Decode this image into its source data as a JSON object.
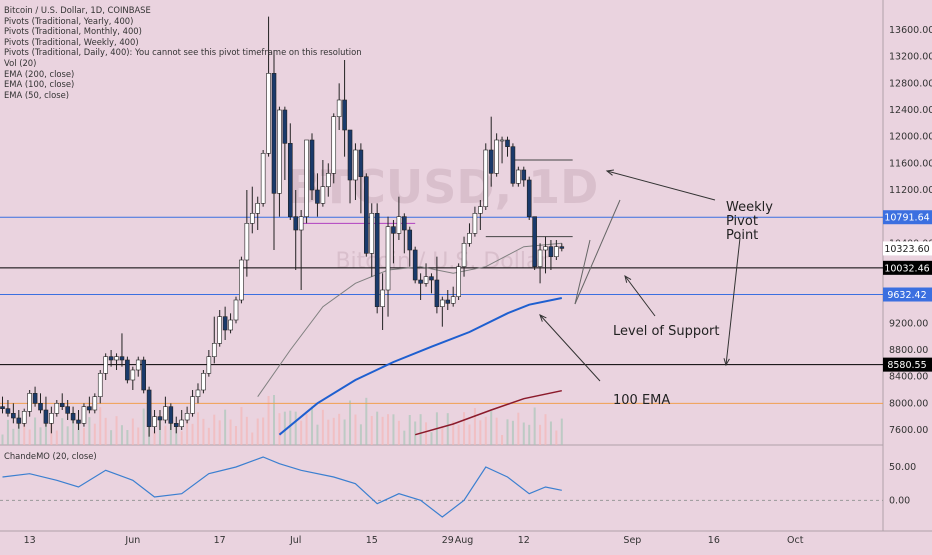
{
  "legend": {
    "symbol": "Bitcoin / U.S. Dollar, 1D, COINBASE",
    "studies": [
      "Pivots (Traditional, Yearly, 400)",
      "Pivots (Traditional, Monthly, 400)",
      "Pivots (Traditional, Weekly, 400)",
      "Pivots (Traditional, Daily, 400): You cannot see this pivot timeframe on this resolution",
      "Vol (20)",
      "EMA (200, close)",
      "EMA (100, close)",
      "EMA (50, close)"
    ]
  },
  "watermark": {
    "ticker": "BTCUSD, 1D",
    "name": "Bitcoin / U.S. Dollar"
  },
  "oscillator": {
    "label": "ChandeMO (20, close)"
  },
  "annotations": [
    {
      "text": "Weekly\nPivot\nPoint"
    },
    {
      "text": "Level of Support"
    },
    {
      "text": "100 EMA"
    }
  ],
  "colors": {
    "background": "#ead3df",
    "bull_candle": "#ffffff",
    "bear_candle": "#1a3a6b",
    "ema_100": "#1e5fd0",
    "ema_200": "#8b1a2b",
    "ema_50": "#808080",
    "weekly_pivot_line": "#3b6fe0",
    "support_line": "#000000",
    "orange_line": "#f0a050",
    "oscillator": "#3b7fd0"
  },
  "chart_data": {
    "type": "candlestick",
    "title": "Bitcoin / U.S. Dollar, 1D, COINBASE",
    "y_axis": {
      "min": 7450,
      "max": 13900,
      "ticks": [
        7600,
        8000,
        8400,
        8800,
        9200,
        9600,
        10000,
        10400,
        10800,
        11200,
        11600,
        12000,
        12400,
        12800,
        13200,
        13600
      ],
      "tick_labels": [
        "7600.00",
        "8000.00",
        "8400.00",
        "8800.00",
        "9200.00",
        "9600.00",
        "10000.00",
        "10400.00",
        "10800.00",
        "11200.00",
        "11600.00",
        "12000.00",
        "12400.00",
        "12800.00",
        "13200.00",
        "13600.00"
      ]
    },
    "x_axis": {
      "start_date": "2019-05-08",
      "end_date": "2019-10-10",
      "tick_labels": [
        {
          "label": "13",
          "date": "2019-05-13"
        },
        {
          "label": "Jun",
          "date": "2019-06-01"
        },
        {
          "label": "17",
          "date": "2019-06-17"
        },
        {
          "label": "Jul",
          "date": "2019-07-01"
        },
        {
          "label": "15",
          "date": "2019-07-15"
        },
        {
          "label": "29",
          "date": "2019-07-29"
        },
        {
          "label": "Aug",
          "date": "2019-08-01"
        },
        {
          "label": "12",
          "date": "2019-08-12"
        },
        {
          "label": "Sep",
          "date": "2019-09-01"
        },
        {
          "label": "16",
          "date": "2019-09-16"
        },
        {
          "label": "Oct",
          "date": "2019-10-01"
        }
      ]
    },
    "price_tags": [
      {
        "value": 10791.64,
        "label": "10791.64",
        "color": "#3b6fe0"
      },
      {
        "value": 10323.6,
        "label": "10323.60",
        "color": "#ffffff"
      },
      {
        "value": 10032.46,
        "label": "10032.46",
        "color": "#000000"
      },
      {
        "value": 9632.42,
        "label": "9632.42",
        "color": "#3b6fe0"
      },
      {
        "value": 8580.55,
        "label": "8580.55",
        "color": "#000000"
      }
    ],
    "horizontal_lines": [
      {
        "value": 10791.64,
        "color": "#3b6fe0"
      },
      {
        "value": 10032.46,
        "color": "#000000"
      },
      {
        "value": 9632.42,
        "color": "#3b6fe0"
      },
      {
        "value": 8580.55,
        "color": "#000000"
      },
      {
        "value": 8000,
        "color": "#f0a050"
      }
    ],
    "candles": [
      {
        "date": "2019-05-08",
        "o": 7950,
        "h": 8100,
        "l": 7850,
        "c": 7920
      },
      {
        "date": "2019-05-09",
        "o": 7920,
        "h": 8050,
        "l": 7800,
        "c": 7850
      },
      {
        "date": "2019-05-10",
        "o": 7850,
        "h": 8000,
        "l": 7700,
        "c": 7780
      },
      {
        "date": "2019-05-11",
        "o": 7780,
        "h": 7900,
        "l": 7620,
        "c": 7700
      },
      {
        "date": "2019-05-12",
        "o": 7700,
        "h": 7920,
        "l": 7650,
        "c": 7880
      },
      {
        "date": "2019-05-13",
        "o": 7880,
        "h": 8200,
        "l": 7800,
        "c": 8150
      },
      {
        "date": "2019-05-14",
        "o": 8150,
        "h": 8250,
        "l": 7950,
        "c": 8000
      },
      {
        "date": "2019-05-15",
        "o": 8000,
        "h": 8150,
        "l": 7850,
        "c": 7900
      },
      {
        "date": "2019-05-16",
        "o": 7900,
        "h": 8100,
        "l": 7650,
        "c": 7700
      },
      {
        "date": "2019-05-17",
        "o": 7700,
        "h": 7950,
        "l": 7550,
        "c": 7850
      },
      {
        "date": "2019-05-18",
        "o": 7850,
        "h": 8050,
        "l": 7800,
        "c": 8000
      },
      {
        "date": "2019-05-19",
        "o": 8000,
        "h": 8150,
        "l": 7900,
        "c": 7950
      },
      {
        "date": "2019-05-20",
        "o": 7950,
        "h": 8050,
        "l": 7750,
        "c": 7850
      },
      {
        "date": "2019-05-21",
        "o": 7850,
        "h": 7950,
        "l": 7700,
        "c": 7750
      },
      {
        "date": "2019-05-22",
        "o": 7750,
        "h": 7900,
        "l": 7600,
        "c": 7700
      },
      {
        "date": "2019-05-23",
        "o": 7700,
        "h": 8000,
        "l": 7650,
        "c": 7950
      },
      {
        "date": "2019-05-24",
        "o": 7950,
        "h": 8100,
        "l": 7850,
        "c": 7900
      },
      {
        "date": "2019-05-25",
        "o": 7900,
        "h": 8150,
        "l": 7850,
        "c": 8100
      },
      {
        "date": "2019-05-26",
        "o": 8100,
        "h": 8500,
        "l": 8000,
        "c": 8450
      },
      {
        "date": "2019-05-27",
        "o": 8450,
        "h": 8750,
        "l": 8350,
        "c": 8700
      },
      {
        "date": "2019-05-28",
        "o": 8700,
        "h": 8800,
        "l": 8550,
        "c": 8650
      },
      {
        "date": "2019-05-29",
        "o": 8650,
        "h": 8750,
        "l": 8500,
        "c": 8700
      },
      {
        "date": "2019-05-30",
        "o": 8700,
        "h": 9050,
        "l": 8550,
        "c": 8650
      },
      {
        "date": "2019-05-31",
        "o": 8650,
        "h": 8700,
        "l": 8300,
        "c": 8350
      },
      {
        "date": "2019-06-01",
        "o": 8350,
        "h": 8550,
        "l": 8200,
        "c": 8500
      },
      {
        "date": "2019-06-02",
        "o": 8500,
        "h": 8700,
        "l": 8400,
        "c": 8650
      },
      {
        "date": "2019-06-03",
        "o": 8650,
        "h": 8700,
        "l": 8150,
        "c": 8200
      },
      {
        "date": "2019-06-04",
        "o": 8200,
        "h": 8250,
        "l": 7500,
        "c": 7650
      },
      {
        "date": "2019-06-05",
        "o": 7650,
        "h": 7900,
        "l": 7550,
        "c": 7800
      },
      {
        "date": "2019-06-06",
        "o": 7800,
        "h": 7900,
        "l": 7600,
        "c": 7750
      },
      {
        "date": "2019-06-07",
        "o": 7750,
        "h": 8100,
        "l": 7700,
        "c": 7950
      },
      {
        "date": "2019-06-08",
        "o": 7950,
        "h": 8000,
        "l": 7600,
        "c": 7700
      },
      {
        "date": "2019-06-09",
        "o": 7700,
        "h": 7800,
        "l": 7550,
        "c": 7650
      },
      {
        "date": "2019-06-10",
        "o": 7650,
        "h": 7900,
        "l": 7600,
        "c": 7750
      },
      {
        "date": "2019-06-11",
        "o": 7750,
        "h": 7950,
        "l": 7700,
        "c": 7850
      },
      {
        "date": "2019-06-12",
        "o": 7850,
        "h": 8200,
        "l": 7800,
        "c": 8100
      },
      {
        "date": "2019-06-13",
        "o": 8100,
        "h": 8300,
        "l": 8000,
        "c": 8200
      },
      {
        "date": "2019-06-14",
        "o": 8200,
        "h": 8500,
        "l": 8150,
        "c": 8450
      },
      {
        "date": "2019-06-15",
        "o": 8450,
        "h": 8800,
        "l": 8400,
        "c": 8700
      },
      {
        "date": "2019-06-16",
        "o": 8700,
        "h": 9300,
        "l": 8600,
        "c": 8900
      },
      {
        "date": "2019-06-17",
        "o": 8900,
        "h": 9400,
        "l": 8850,
        "c": 9300
      },
      {
        "date": "2019-06-18",
        "o": 9300,
        "h": 9450,
        "l": 8950,
        "c": 9100
      },
      {
        "date": "2019-06-19",
        "o": 9100,
        "h": 9350,
        "l": 9050,
        "c": 9250
      },
      {
        "date": "2019-06-20",
        "o": 9250,
        "h": 9600,
        "l": 9200,
        "c": 9550
      },
      {
        "date": "2019-06-21",
        "o": 9550,
        "h": 10200,
        "l": 9500,
        "c": 10150
      },
      {
        "date": "2019-06-22",
        "o": 10150,
        "h": 11200,
        "l": 9900,
        "c": 10700
      },
      {
        "date": "2019-06-23",
        "o": 10700,
        "h": 11250,
        "l": 10550,
        "c": 10850
      },
      {
        "date": "2019-06-24",
        "o": 10850,
        "h": 11100,
        "l": 10600,
        "c": 11000
      },
      {
        "date": "2019-06-25",
        "o": 11000,
        "h": 11800,
        "l": 10950,
        "c": 11750
      },
      {
        "date": "2019-06-26",
        "o": 11750,
        "h": 13800,
        "l": 11700,
        "c": 12950
      },
      {
        "date": "2019-06-27",
        "o": 12950,
        "h": 13300,
        "l": 10300,
        "c": 11150
      },
      {
        "date": "2019-06-28",
        "o": 11150,
        "h": 12450,
        "l": 10800,
        "c": 12400
      },
      {
        "date": "2019-06-29",
        "o": 12400,
        "h": 12450,
        "l": 11350,
        "c": 11900
      },
      {
        "date": "2019-06-30",
        "o": 11900,
        "h": 12200,
        "l": 10750,
        "c": 10800
      },
      {
        "date": "2019-07-01",
        "o": 10800,
        "h": 11200,
        "l": 10000,
        "c": 10600
      },
      {
        "date": "2019-07-02",
        "o": 10600,
        "h": 10900,
        "l": 9700,
        "c": 10800
      },
      {
        "date": "2019-07-03",
        "o": 10800,
        "h": 11950,
        "l": 10700,
        "c": 11950
      },
      {
        "date": "2019-07-04",
        "o": 11950,
        "h": 12050,
        "l": 11050,
        "c": 11200
      },
      {
        "date": "2019-07-05",
        "o": 11200,
        "h": 11450,
        "l": 10800,
        "c": 11000
      },
      {
        "date": "2019-07-06",
        "o": 11000,
        "h": 11650,
        "l": 10950,
        "c": 11250
      },
      {
        "date": "2019-07-07",
        "o": 11250,
        "h": 11600,
        "l": 11100,
        "c": 11450
      },
      {
        "date": "2019-07-08",
        "o": 11450,
        "h": 12350,
        "l": 11300,
        "c": 12300
      },
      {
        "date": "2019-07-09",
        "o": 12300,
        "h": 12800,
        "l": 12100,
        "c": 12550
      },
      {
        "date": "2019-07-10",
        "o": 12550,
        "h": 13150,
        "l": 11700,
        "c": 12100
      },
      {
        "date": "2019-07-11",
        "o": 12100,
        "h": 12100,
        "l": 11000,
        "c": 11350
      },
      {
        "date": "2019-07-12",
        "o": 11350,
        "h": 11900,
        "l": 11050,
        "c": 11800
      },
      {
        "date": "2019-07-13",
        "o": 11800,
        "h": 11900,
        "l": 10850,
        "c": 11400
      },
      {
        "date": "2019-07-14",
        "o": 11400,
        "h": 11450,
        "l": 10200,
        "c": 10250
      },
      {
        "date": "2019-07-15",
        "o": 10250,
        "h": 11000,
        "l": 9900,
        "c": 10850
      },
      {
        "date": "2019-07-16",
        "o": 10850,
        "h": 11000,
        "l": 9350,
        "c": 9450
      },
      {
        "date": "2019-07-17",
        "o": 9450,
        "h": 9950,
        "l": 9100,
        "c": 9700
      },
      {
        "date": "2019-07-18",
        "o": 9700,
        "h": 10800,
        "l": 9300,
        "c": 10650
      },
      {
        "date": "2019-07-19",
        "o": 10650,
        "h": 10750,
        "l": 10100,
        "c": 10550
      },
      {
        "date": "2019-07-20",
        "o": 10550,
        "h": 11100,
        "l": 10450,
        "c": 10800
      },
      {
        "date": "2019-07-21",
        "o": 10800,
        "h": 10850,
        "l": 10250,
        "c": 10600
      },
      {
        "date": "2019-07-22",
        "o": 10600,
        "h": 10650,
        "l": 10050,
        "c": 10300
      },
      {
        "date": "2019-07-23",
        "o": 10300,
        "h": 10350,
        "l": 9800,
        "c": 9850
      },
      {
        "date": "2019-07-24",
        "o": 9850,
        "h": 9950,
        "l": 9550,
        "c": 9800
      },
      {
        "date": "2019-07-25",
        "o": 9800,
        "h": 10100,
        "l": 9750,
        "c": 9900
      },
      {
        "date": "2019-07-26",
        "o": 9900,
        "h": 9950,
        "l": 9650,
        "c": 9850
      },
      {
        "date": "2019-07-27",
        "o": 9850,
        "h": 10200,
        "l": 9350,
        "c": 9450
      },
      {
        "date": "2019-07-28",
        "o": 9450,
        "h": 9600,
        "l": 9150,
        "c": 9550
      },
      {
        "date": "2019-07-29",
        "o": 9550,
        "h": 9700,
        "l": 9400,
        "c": 9500
      },
      {
        "date": "2019-07-30",
        "o": 9500,
        "h": 9750,
        "l": 9450,
        "c": 9600
      },
      {
        "date": "2019-07-31",
        "o": 9600,
        "h": 10100,
        "l": 9550,
        "c": 10050
      },
      {
        "date": "2019-08-01",
        "o": 10050,
        "h": 10500,
        "l": 9900,
        "c": 10400
      },
      {
        "date": "2019-08-02",
        "o": 10400,
        "h": 10700,
        "l": 10350,
        "c": 10550
      },
      {
        "date": "2019-08-03",
        "o": 10550,
        "h": 10950,
        "l": 10500,
        "c": 10850
      },
      {
        "date": "2019-08-04",
        "o": 10850,
        "h": 11050,
        "l": 10600,
        "c": 10950
      },
      {
        "date": "2019-08-05",
        "o": 10950,
        "h": 11900,
        "l": 10900,
        "c": 11800
      },
      {
        "date": "2019-08-06",
        "o": 11800,
        "h": 12300,
        "l": 11250,
        "c": 11450
      },
      {
        "date": "2019-08-07",
        "o": 11450,
        "h": 12050,
        "l": 11400,
        "c": 11950
      },
      {
        "date": "2019-08-08",
        "o": 11950,
        "h": 12000,
        "l": 11600,
        "c": 11950
      },
      {
        "date": "2019-08-09",
        "o": 11950,
        "h": 12000,
        "l": 11700,
        "c": 11850
      },
      {
        "date": "2019-08-10",
        "o": 11850,
        "h": 11900,
        "l": 11250,
        "c": 11300
      },
      {
        "date": "2019-08-11",
        "o": 11300,
        "h": 11550,
        "l": 11250,
        "c": 11500
      },
      {
        "date": "2019-08-12",
        "o": 11500,
        "h": 11550,
        "l": 11250,
        "c": 11350
      },
      {
        "date": "2019-08-13",
        "o": 11350,
        "h": 11400,
        "l": 10750,
        "c": 10800
      },
      {
        "date": "2019-08-14",
        "o": 10800,
        "h": 10800,
        "l": 10000,
        "c": 10050
      },
      {
        "date": "2019-08-15",
        "o": 10050,
        "h": 10400,
        "l": 9800,
        "c": 10300
      },
      {
        "date": "2019-08-16",
        "o": 10300,
        "h": 10500,
        "l": 9950,
        "c": 10350
      },
      {
        "date": "2019-08-17",
        "o": 10350,
        "h": 10450,
        "l": 10000,
        "c": 10200
      },
      {
        "date": "2019-08-18",
        "o": 10200,
        "h": 10450,
        "l": 10150,
        "c": 10350
      },
      {
        "date": "2019-08-19",
        "o": 10350,
        "h": 10400,
        "l": 10280,
        "c": 10324
      }
    ],
    "ema_100": [
      {
        "date": "2019-06-28",
        "v": 7530
      },
      {
        "date": "2019-07-05",
        "v": 8000
      },
      {
        "date": "2019-07-12",
        "v": 8350
      },
      {
        "date": "2019-07-19",
        "v": 8620
      },
      {
        "date": "2019-07-26",
        "v": 8850
      },
      {
        "date": "2019-08-02",
        "v": 9070
      },
      {
        "date": "2019-08-09",
        "v": 9350
      },
      {
        "date": "2019-08-13",
        "v": 9480
      },
      {
        "date": "2019-08-19",
        "v": 9580
      }
    ],
    "ema_200": [
      {
        "date": "2019-07-23",
        "v": 7530
      },
      {
        "date": "2019-07-30",
        "v": 7690
      },
      {
        "date": "2019-08-06",
        "v": 7900
      },
      {
        "date": "2019-08-12",
        "v": 8070
      },
      {
        "date": "2019-08-19",
        "v": 8190
      }
    ],
    "ema_50": [
      {
        "date": "2019-06-24",
        "v": 8100
      },
      {
        "date": "2019-06-30",
        "v": 8800
      },
      {
        "date": "2019-07-06",
        "v": 9450
      },
      {
        "date": "2019-07-12",
        "v": 9800
      },
      {
        "date": "2019-07-18",
        "v": 10000
      },
      {
        "date": "2019-07-24",
        "v": 10050
      },
      {
        "date": "2019-07-30",
        "v": 9950
      },
      {
        "date": "2019-08-05",
        "v": 10050
      },
      {
        "date": "2019-08-12",
        "v": 10350
      },
      {
        "date": "2019-08-19",
        "v": 10400
      }
    ],
    "oscillator_axis": {
      "ticks": [
        50,
        0
      ],
      "tick_labels": [
        "50.00",
        "0.00"
      ],
      "min": -40,
      "max": 80
    },
    "oscillator_values": [
      {
        "date": "2019-05-08",
        "v": 35
      },
      {
        "date": "2019-05-13",
        "v": 40
      },
      {
        "date": "2019-05-18",
        "v": 30
      },
      {
        "date": "2019-05-22",
        "v": 20
      },
      {
        "date": "2019-05-27",
        "v": 45
      },
      {
        "date": "2019-06-01",
        "v": 30
      },
      {
        "date": "2019-06-05",
        "v": 5
      },
      {
        "date": "2019-06-10",
        "v": 10
      },
      {
        "date": "2019-06-15",
        "v": 40
      },
      {
        "date": "2019-06-20",
        "v": 50
      },
      {
        "date": "2019-06-25",
        "v": 65
      },
      {
        "date": "2019-06-28",
        "v": 55
      },
      {
        "date": "2019-07-02",
        "v": 45
      },
      {
        "date": "2019-07-08",
        "v": 35
      },
      {
        "date": "2019-07-12",
        "v": 25
      },
      {
        "date": "2019-07-16",
        "v": -5
      },
      {
        "date": "2019-07-20",
        "v": 10
      },
      {
        "date": "2019-07-24",
        "v": 0
      },
      {
        "date": "2019-07-28",
        "v": -25
      },
      {
        "date": "2019-08-01",
        "v": 0
      },
      {
        "date": "2019-08-05",
        "v": 50
      },
      {
        "date": "2019-08-09",
        "v": 35
      },
      {
        "date": "2019-08-13",
        "v": 10
      },
      {
        "date": "2019-08-16",
        "v": 20
      },
      {
        "date": "2019-08-19",
        "v": 15
      }
    ]
  }
}
